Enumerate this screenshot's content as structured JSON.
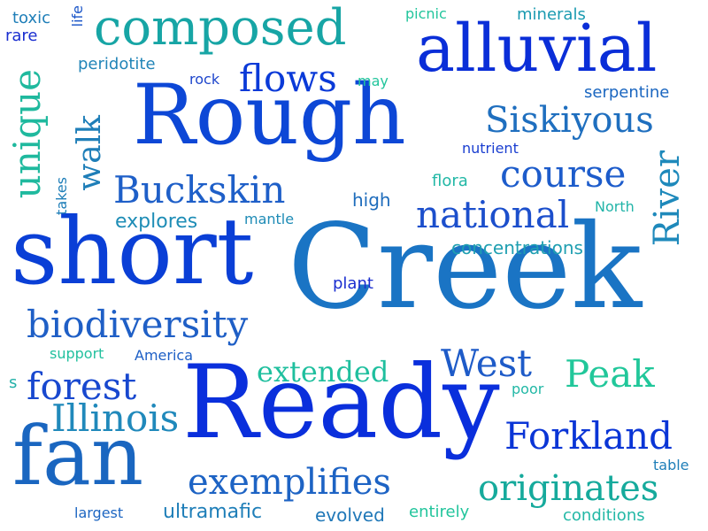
{
  "word_cloud": {
    "words": [
      {
        "text": "Creek",
        "color": "#1a74c4"
      },
      {
        "text": "Ready",
        "color": "#0a2fdc"
      },
      {
        "text": "short",
        "color": "#0a3fd6"
      },
      {
        "text": "Rough",
        "color": "#0d47d6"
      },
      {
        "text": "alluvial",
        "color": "#0a2ed8"
      },
      {
        "text": "fan",
        "color": "#1a66c0"
      },
      {
        "text": "composed",
        "color": "#17a5a5"
      },
      {
        "text": "biodiversity",
        "color": "#1f5fc6"
      },
      {
        "text": "national",
        "color": "#1c4fcc"
      },
      {
        "text": "Buckskin",
        "color": "#1e5fc8"
      },
      {
        "text": "Forkland",
        "color": "#0a35d6"
      },
      {
        "text": "exemplifies",
        "color": "#1d63c4"
      },
      {
        "text": "originates",
        "color": "#16aa9c"
      },
      {
        "text": "Siskiyous",
        "color": "#1f6fbf"
      },
      {
        "text": "course",
        "color": "#1d5ccb"
      },
      {
        "text": "Illinois",
        "color": "#2089bb"
      },
      {
        "text": "forest",
        "color": "#1848cf"
      },
      {
        "text": "flows",
        "color": "#0a3ad8"
      },
      {
        "text": "West",
        "color": "#1e5bc8"
      },
      {
        "text": "Peak",
        "color": "#21c79a"
      },
      {
        "text": "extended",
        "color": "#1fbf9e"
      },
      {
        "text": "unique",
        "color": "#1fb99e"
      },
      {
        "text": "walk",
        "color": "#1e7eb8"
      },
      {
        "text": "River",
        "color": "#1e89bb"
      },
      {
        "text": "ultramafic",
        "color": "#1e7eb8"
      },
      {
        "text": "explores",
        "color": "#1e8db6"
      },
      {
        "text": "concentrations",
        "color": "#1f9fb1"
      },
      {
        "text": "serpentine",
        "color": "#1a66c0"
      },
      {
        "text": "peridotite",
        "color": "#2285b8"
      },
      {
        "text": "minerals",
        "color": "#1a9ab0"
      },
      {
        "text": "evolved",
        "color": "#2078b8"
      },
      {
        "text": "conditions",
        "color": "#22b8a6"
      },
      {
        "text": "entirely",
        "color": "#22c59c"
      },
      {
        "text": "largest",
        "color": "#1d66c2"
      },
      {
        "text": "table",
        "color": "#1e7eb8"
      },
      {
        "text": "poor",
        "color": "#22b8a6"
      },
      {
        "text": "support",
        "color": "#22c09e"
      },
      {
        "text": "America",
        "color": "#1d5fc6"
      },
      {
        "text": "plant",
        "color": "#1a2ed0"
      },
      {
        "text": "high",
        "color": "#1e6cbc"
      },
      {
        "text": "flora",
        "color": "#22b8a6"
      },
      {
        "text": "North",
        "color": "#22b4a8"
      },
      {
        "text": "mantle",
        "color": "#1e8bb6"
      },
      {
        "text": "nutrient",
        "color": "#1a3ed0"
      },
      {
        "text": "may",
        "color": "#22c59c"
      },
      {
        "text": "rock",
        "color": "#1d45cc"
      },
      {
        "text": "picnic",
        "color": "#22c59c"
      },
      {
        "text": "toxic",
        "color": "#1e7eb8"
      },
      {
        "text": "rare",
        "color": "#1a2ed0"
      },
      {
        "text": "life",
        "color": "#1a55c8"
      },
      {
        "text": "takes",
        "color": "#1e7eb8"
      },
      {
        "text": "s",
        "color": "#22b0a8"
      }
    ]
  }
}
